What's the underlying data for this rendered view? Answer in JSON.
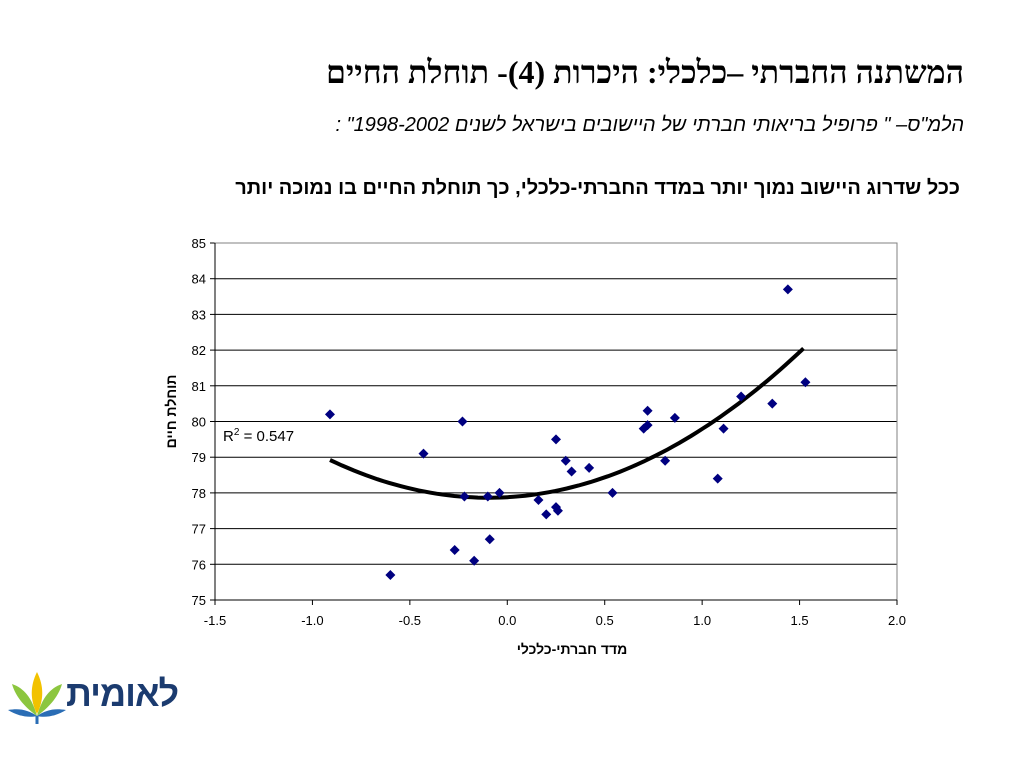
{
  "slide": {
    "title": "המשתנה החברתי –כלכלי: היכרות (4)- תוחלת החיים",
    "subtitle": "הלמ\"ס– \" פרופיל בריאותי חברתי של היישובים בישראל לשנים 1998-2002\" :",
    "statement": "ככל שדרוג היישוב נמוך יותר במדד החברתי-כלכלי, כך תוחלת החיים בו נמוכה יותר"
  },
  "logo": {
    "text": "לאומית",
    "colors": {
      "text": "#1b3b6f",
      "leaf_green": "#8cc63f",
      "leaf_yellow": "#f2c200",
      "leaf_blue": "#2a6db5"
    }
  },
  "chart_data": {
    "type": "scatter",
    "xlabel": "מדד חברתי-כלכלי",
    "ylabel": "תוחלת חיים",
    "xlim": [
      -1.5,
      2.0
    ],
    "ylim": [
      75,
      85
    ],
    "x_ticks": [
      "-1.5",
      "-1.0",
      "-0.5",
      "0.0",
      "0.5",
      "1.0",
      "1.5",
      "2.0"
    ],
    "y_ticks": [
      "75",
      "76",
      "77",
      "78",
      "79",
      "80",
      "81",
      "82",
      "83",
      "84",
      "85"
    ],
    "grid": "horizontal",
    "marker_color": "#000080",
    "trend_color": "#000000",
    "r2_label": {
      "prefix": "R",
      "sup": "2",
      "value": " = 0.547"
    },
    "points": [
      {
        "x": -0.91,
        "y": 80.2
      },
      {
        "x": -0.6,
        "y": 75.7
      },
      {
        "x": -0.43,
        "y": 79.1
      },
      {
        "x": -0.27,
        "y": 76.4
      },
      {
        "x": -0.23,
        "y": 80.0
      },
      {
        "x": -0.22,
        "y": 77.9
      },
      {
        "x": -0.17,
        "y": 76.1
      },
      {
        "x": -0.1,
        "y": 77.9
      },
      {
        "x": -0.09,
        "y": 76.7
      },
      {
        "x": -0.04,
        "y": 78.0
      },
      {
        "x": 0.16,
        "y": 77.8
      },
      {
        "x": 0.2,
        "y": 77.4
      },
      {
        "x": 0.25,
        "y": 79.5
      },
      {
        "x": 0.25,
        "y": 77.6
      },
      {
        "x": 0.26,
        "y": 77.5
      },
      {
        "x": 0.3,
        "y": 78.9
      },
      {
        "x": 0.33,
        "y": 78.6
      },
      {
        "x": 0.42,
        "y": 78.7
      },
      {
        "x": 0.54,
        "y": 78.0
      },
      {
        "x": 0.7,
        "y": 79.8
      },
      {
        "x": 0.72,
        "y": 79.9
      },
      {
        "x": 0.72,
        "y": 80.3
      },
      {
        "x": 0.81,
        "y": 78.9
      },
      {
        "x": 0.86,
        "y": 80.1
      },
      {
        "x": 1.08,
        "y": 78.4
      },
      {
        "x": 1.11,
        "y": 79.8
      },
      {
        "x": 1.2,
        "y": 80.7
      },
      {
        "x": 1.36,
        "y": 80.5
      },
      {
        "x": 1.44,
        "y": 83.7
      },
      {
        "x": 1.53,
        "y": 81.1
      }
    ],
    "trendline": {
      "type": "polynomial-2",
      "coefficients": [
        77.88,
        0.31,
        1.6
      ],
      "x_range": [
        -0.91,
        1.52
      ]
    }
  }
}
